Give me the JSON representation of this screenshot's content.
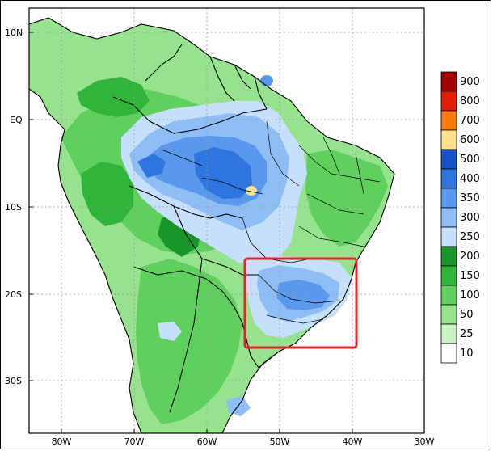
{
  "map": {
    "lat_labels": [
      "10N",
      "EQ",
      "10S",
      "20S",
      "30S"
    ],
    "lon_labels": [
      "80W",
      "70W",
      "60W",
      "50W",
      "40W",
      "30W"
    ],
    "highlight_color": "#e8202a"
  },
  "legend": {
    "bins": [
      {
        "label": "900",
        "color": "#a50000"
      },
      {
        "label": "800",
        "color": "#e51d00"
      },
      {
        "label": "700",
        "color": "#fa7a10"
      },
      {
        "label": "600",
        "color": "#fde08a"
      },
      {
        "label": "500",
        "color": "#1652c8"
      },
      {
        "label": "400",
        "color": "#2e75e0"
      },
      {
        "label": "350",
        "color": "#5a98ee"
      },
      {
        "label": "300",
        "color": "#8fbdf5"
      },
      {
        "label": "250",
        "color": "#c6e0fb"
      },
      {
        "label": "200",
        "color": "#18962a"
      },
      {
        "label": "150",
        "color": "#30b43a"
      },
      {
        "label": "100",
        "color": "#5fd05e"
      },
      {
        "label": "50",
        "color": "#96e28f"
      },
      {
        "label": "25",
        "color": "#c9f2c2"
      },
      {
        "label": "10",
        "color": "#ffffff"
      }
    ]
  }
}
